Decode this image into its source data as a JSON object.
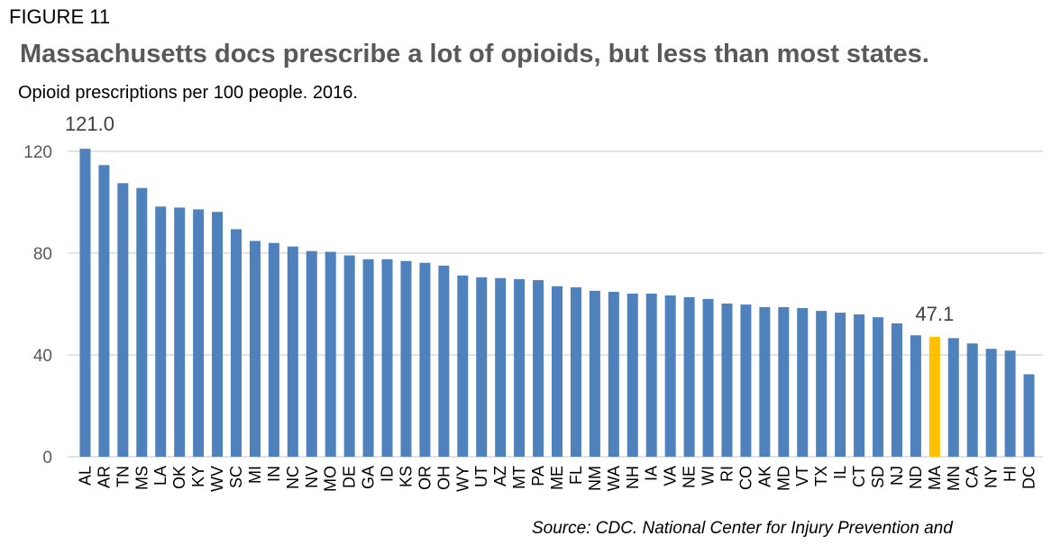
{
  "figure_label": "FIGURE 11",
  "source": "Source: CDC. National Center for Injury Prevention and",
  "chart_data": {
    "type": "bar",
    "title": "Massachusetts docs prescribe a lot of opioids, but less than most states.",
    "subtitle": "Opioid prescriptions per 100 people. 2016.",
    "categories": [
      "AL",
      "AR",
      "TN",
      "MS",
      "LA",
      "OK",
      "KY",
      "WV",
      "SC",
      "MI",
      "IN",
      "NC",
      "NV",
      "MO",
      "DE",
      "GA",
      "ID",
      "KS",
      "OR",
      "OH",
      "WY",
      "UT",
      "AZ",
      "MT",
      "PA",
      "ME",
      "FL",
      "NM",
      "WA",
      "NH",
      "IA",
      "VA",
      "NE",
      "WI",
      "RI",
      "CO",
      "AK",
      "MD",
      "VT",
      "TX",
      "IL",
      "CT",
      "SD",
      "NJ",
      "ND",
      "MA",
      "MN",
      "CA",
      "NY",
      "HI",
      "DC"
    ],
    "values": [
      121.0,
      114.6,
      107.5,
      105.6,
      98.3,
      97.9,
      97.2,
      96.2,
      89.4,
      84.8,
      84.0,
      82.6,
      80.8,
      80.5,
      79.1,
      77.6,
      77.6,
      76.9,
      76.2,
      75.1,
      71.2,
      70.5,
      70.2,
      69.8,
      69.4,
      67.0,
      66.6,
      65.2,
      64.8,
      64.1,
      64.1,
      63.4,
      62.7,
      62.0,
      60.2,
      59.8,
      58.8,
      58.8,
      58.4,
      57.3,
      56.6,
      55.9,
      54.8,
      52.4,
      47.7,
      47.1,
      46.6,
      44.5,
      42.4,
      41.7,
      32.4
    ],
    "data_labels": [
      {
        "category": "AL",
        "text": "121.0"
      },
      {
        "category": "MA",
        "text": "47.1"
      }
    ],
    "yticks": [
      "0",
      "40",
      "80",
      "120"
    ],
    "ylim": [
      0,
      120
    ],
    "grid": true,
    "highlight": "MA",
    "colors": {
      "bar": "#4f81bd",
      "highlight": "#ffc000",
      "grid": "#d9d9d9"
    }
  }
}
